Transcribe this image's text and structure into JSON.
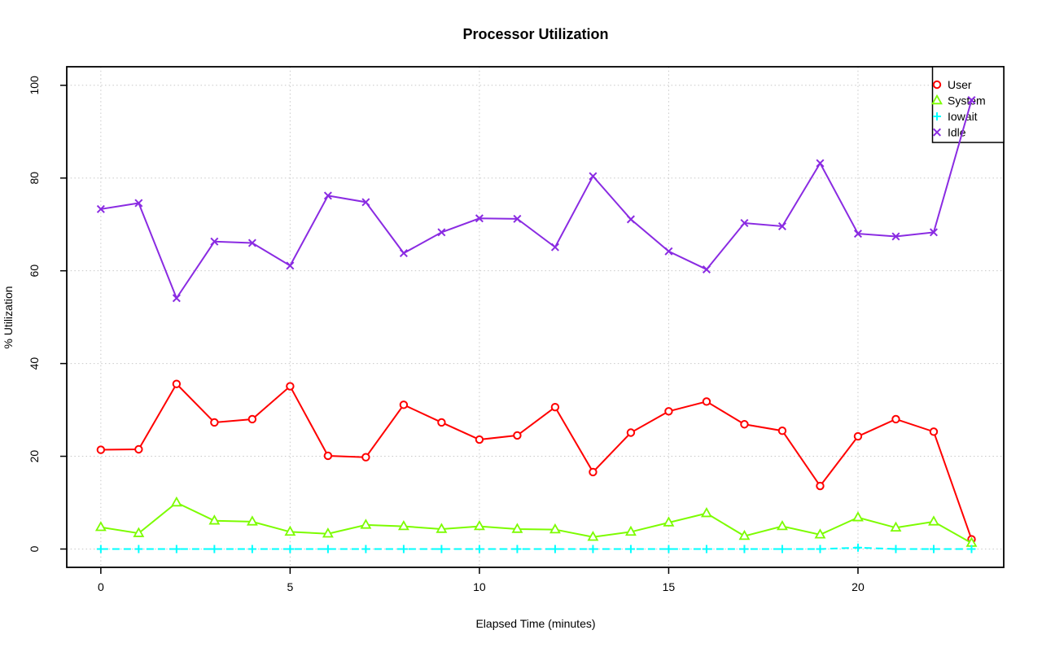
{
  "page": {
    "background": "#ffffff"
  },
  "chart_data": {
    "type": "line",
    "title": "Processor Utilization",
    "xlabel": "Elapsed Time (minutes)",
    "ylabel": "% Utilization",
    "x": [
      0,
      1,
      2,
      3,
      4,
      5,
      6,
      7,
      8,
      9,
      10,
      11,
      12,
      13,
      14,
      15,
      16,
      17,
      18,
      19,
      20,
      21,
      22,
      23
    ],
    "xticks": [
      0,
      5,
      10,
      15,
      20
    ],
    "yticks": [
      0,
      20,
      40,
      60,
      80,
      100
    ],
    "xlim": [
      -0.9,
      23.85
    ],
    "ylim": [
      -3.95,
      104
    ],
    "grid": true,
    "grid_style": "dotted",
    "grid_color": "#c8c8c8",
    "legend": {
      "position": "top-right"
    },
    "series": [
      {
        "name": "User",
        "color": "#ff0000",
        "marker": "circle",
        "linestyle": "solid",
        "values": [
          21.4,
          21.5,
          35.6,
          27.3,
          28.0,
          35.1,
          20.1,
          19.8,
          31.1,
          27.3,
          23.6,
          24.5,
          30.6,
          16.6,
          25.1,
          29.7,
          31.8,
          26.9,
          25.5,
          13.6,
          24.3,
          28.0,
          25.3,
          2.1
        ]
      },
      {
        "name": "System",
        "color": "#7cfc00",
        "marker": "triangle",
        "linestyle": "solid",
        "values": [
          4.7,
          3.4,
          10.0,
          6.1,
          5.9,
          3.7,
          3.3,
          5.2,
          4.9,
          4.3,
          4.9,
          4.3,
          4.2,
          2.6,
          3.7,
          5.7,
          7.7,
          2.8,
          4.9,
          3.1,
          6.8,
          4.6,
          5.9,
          1.3
        ]
      },
      {
        "name": "Iowait",
        "color": "#00ffff",
        "marker": "plus",
        "linestyle": "dashed",
        "values": [
          0,
          0,
          0,
          0,
          0,
          0,
          0,
          0,
          0,
          0,
          0,
          0,
          0,
          0,
          0,
          0,
          0,
          0,
          0,
          0,
          0.3,
          0,
          0,
          0
        ]
      },
      {
        "name": "Idle",
        "color": "#8a2be2",
        "marker": "x",
        "linestyle": "solid",
        "values": [
          73.3,
          74.6,
          54.1,
          66.3,
          66.0,
          61.1,
          76.2,
          74.8,
          63.8,
          68.3,
          71.3,
          71.2,
          65.1,
          80.4,
          71.1,
          64.2,
          60.3,
          70.3,
          69.6,
          83.2,
          68.0,
          67.4,
          68.3,
          96.8
        ]
      }
    ]
  }
}
